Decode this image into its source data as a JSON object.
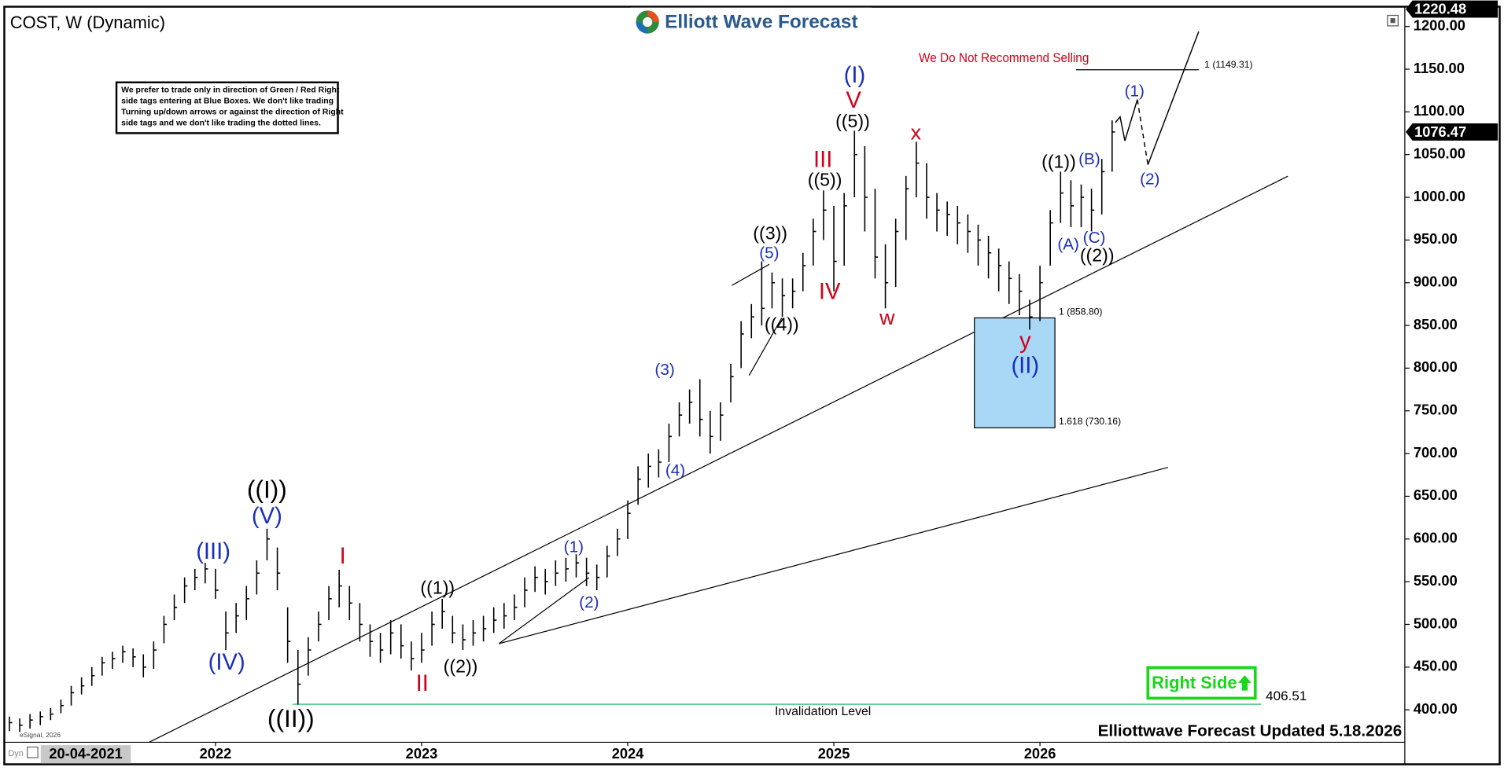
{
  "chart_data": {
    "type": "ohlc",
    "title": "COST, W (Dynamic)",
    "logo": "Elliott Wave Forecast",
    "warning": "We Do Not Recommend Selling",
    "note": [
      "We prefer to trade only in direction of Green / Red Right",
      "side tags entering at Blue Boxes. We don't like trading",
      "Turning up/down arrows or against the direction of Right",
      "side tags and we don't like trading the dotted lines."
    ],
    "footer": "Elliottwave Forecast Updated 5.18.2026",
    "cursor_date": "20-04-2021",
    "source": "eSignal, 2026",
    "corner": "Dyn",
    "right_side": "Right Side",
    "color": "#000000",
    "x": [
      2021,
      2021.05,
      2021.1,
      2021.15,
      2021.2,
      2021.25,
      2021.3,
      2021.35,
      2021.4,
      2021.45,
      2021.5,
      2021.55,
      2021.6,
      2021.65,
      2021.7,
      2021.75,
      2021.8,
      2021.85,
      2021.9,
      2021.95,
      2022,
      2022.05,
      2022.1,
      2022.15,
      2022.2,
      2022.25,
      2022.3,
      2022.35,
      2022.4,
      2022.45,
      2022.5,
      2022.55,
      2022.6,
      2022.65,
      2022.7,
      2022.75,
      2022.8,
      2022.85,
      2022.9,
      2022.95,
      2023,
      2023.05,
      2023.1,
      2023.15,
      2023.2,
      2023.25,
      2023.3,
      2023.35,
      2023.4,
      2023.45,
      2023.5,
      2023.55,
      2023.6,
      2023.65,
      2023.7,
      2023.75,
      2023.8,
      2023.85,
      2023.9,
      2023.95,
      2024,
      2024.05,
      2024.1,
      2024.15,
      2024.2,
      2024.25,
      2024.3,
      2024.35,
      2024.4,
      2024.45,
      2024.5,
      2024.55,
      2024.6,
      2024.65,
      2024.7,
      2024.75,
      2024.8,
      2024.85,
      2024.9,
      2024.95,
      2025,
      2025.05,
      2025.1,
      2025.15,
      2025.2,
      2025.25,
      2025.3,
      2025.35,
      2025.4,
      2025.45,
      2025.5,
      2025.55,
      2025.6,
      2025.65,
      2025.7,
      2025.75,
      2025.8,
      2025.85,
      2025.9,
      2025.95,
      2026,
      2026.05,
      2026.1,
      2026.15,
      2026.2,
      2026.25,
      2026.3,
      2026.35
    ],
    "high": [
      392,
      390,
      395,
      398,
      402,
      412,
      428,
      438,
      450,
      462,
      468,
      475,
      472,
      465,
      480,
      510,
      535,
      555,
      565,
      572,
      565,
      515,
      525,
      545,
      575,
      612,
      590,
      520,
      470,
      485,
      515,
      545,
      564,
      545,
      525,
      500,
      490,
      505,
      500,
      480,
      490,
      515,
      530,
      510,
      500,
      505,
      510,
      520,
      525,
      535,
      555,
      568,
      565,
      575,
      578,
      582,
      578,
      570,
      592,
      612,
      645,
      685,
      700,
      705,
      735,
      760,
      775,
      787,
      750,
      760,
      805,
      855,
      875,
      925,
      912,
      905,
      905,
      935,
      975,
      1008,
      990,
      1005,
      1078,
      1060,
      1010,
      945,
      975,
      1025,
      1065,
      1040,
      1005,
      995,
      990,
      980,
      968,
      955,
      940,
      925,
      910,
      880,
      920,
      985,
      1030,
      1020,
      1015,
      1010,
      1045,
      1090
    ],
    "low": [
      375,
      374,
      378,
      382,
      388,
      396,
      405,
      418,
      428,
      440,
      448,
      455,
      450,
      438,
      448,
      478,
      505,
      525,
      540,
      548,
      530,
      470,
      490,
      505,
      535,
      575,
      540,
      455,
      406,
      440,
      480,
      505,
      520,
      505,
      480,
      462,
      455,
      465,
      460,
      446,
      455,
      475,
      495,
      478,
      470,
      475,
      480,
      490,
      495,
      505,
      520,
      538,
      535,
      545,
      550,
      555,
      545,
      540,
      555,
      580,
      600,
      640,
      660,
      672,
      690,
      720,
      735,
      720,
      700,
      715,
      760,
      800,
      835,
      850,
      870,
      860,
      870,
      890,
      920,
      950,
      890,
      920,
      1000,
      960,
      905,
      870,
      895,
      950,
      1000,
      975,
      960,
      955,
      945,
      935,
      920,
      905,
      890,
      875,
      862,
      845,
      855,
      920,
      970,
      965,
      965,
      960,
      980,
      1030
    ],
    "close": [
      385,
      382,
      388,
      392,
      395,
      405,
      420,
      428,
      440,
      455,
      460,
      468,
      462,
      450,
      470,
      500,
      520,
      545,
      555,
      565,
      540,
      490,
      510,
      530,
      560,
      600,
      560,
      480,
      430,
      470,
      500,
      530,
      545,
      525,
      500,
      480,
      470,
      490,
      475,
      460,
      470,
      500,
      515,
      490,
      482,
      490,
      495,
      505,
      510,
      520,
      540,
      555,
      550,
      560,
      565,
      572,
      560,
      555,
      580,
      600,
      630,
      670,
      685,
      690,
      720,
      745,
      760,
      740,
      720,
      745,
      790,
      840,
      860,
      870,
      900,
      885,
      890,
      920,
      960,
      985,
      925,
      990,
      1050,
      1000,
      930,
      900,
      960,
      1010,
      1040,
      1000,
      985,
      980,
      970,
      960,
      950,
      935,
      920,
      905,
      890,
      860,
      900,
      970,
      1005,
      990,
      1000,
      985,
      1030,
      1076.47
    ],
    "xlim": [
      2020.98,
      2027.77
    ],
    "xticks": [
      2022,
      2023,
      2024,
      2025,
      2026
    ],
    "ylim": [
      362,
      1222
    ],
    "yticks": [
      {
        "value": 400,
        "label": "400.00"
      },
      {
        "value": 450,
        "label": "450.00"
      },
      {
        "value": 500,
        "label": "500.00"
      },
      {
        "value": 550,
        "label": "550.00"
      },
      {
        "value": 600,
        "label": "600.00"
      },
      {
        "value": 650,
        "label": "650.00"
      },
      {
        "value": 700,
        "label": "700.00"
      },
      {
        "value": 750,
        "label": "750.00"
      },
      {
        "value": 800,
        "label": "800.00"
      },
      {
        "value": 850,
        "label": "850.00"
      },
      {
        "value": 900,
        "label": "900.00"
      },
      {
        "value": 950,
        "label": "950.00"
      },
      {
        "value": 1000,
        "label": "1000.00"
      },
      {
        "value": 1050,
        "label": "1050.00"
      },
      {
        "value": 1100,
        "label": "1100.00"
      },
      {
        "value": 1150,
        "label": "1150.00"
      },
      {
        "value": 1200,
        "label": "1200.00"
      }
    ],
    "last_price": {
      "value": 1076.47,
      "label": "1076.47"
    },
    "top_price": {
      "value": 1220.48,
      "label": "1220.48"
    },
    "target": {
      "value": 1149.31,
      "label": "1 (1149.31)"
    },
    "blue_box": {
      "top": 858.8,
      "bottom": 730.16,
      "top_label": "1 (858.80)",
      "bottom_label": "1.618 (730.16)",
      "color": "#a9d8f7"
    },
    "invalidation": {
      "value": 406.51,
      "label": "406.51",
      "text": "Invalidation Level",
      "color": "#00b050"
    },
    "waves": [
      {
        "text": "((I))",
        "color": "#000000"
      },
      {
        "text": "(V)",
        "color": "#1a2fb8"
      },
      {
        "text": "(III)",
        "color": "#1a2fb8"
      },
      {
        "text": "(IV)",
        "color": "#1a2fb8"
      },
      {
        "text": "((II))",
        "color": "#000000"
      },
      {
        "text": "I",
        "color": "#d0021b"
      },
      {
        "text": "II",
        "color": "#d0021b"
      },
      {
        "text": "((1))",
        "color": "#000000"
      },
      {
        "text": "((2))",
        "color": "#000000"
      },
      {
        "text": "(1)",
        "color": "#1a2fb8"
      },
      {
        "text": "(2)",
        "color": "#1a2fb8"
      },
      {
        "text": "(3)",
        "color": "#1a2fb8"
      },
      {
        "text": "(4)",
        "color": "#1a2fb8"
      },
      {
        "text": "(5)",
        "color": "#1a2fb8"
      },
      {
        "text": "((3))",
        "color": "#000000"
      },
      {
        "text": "((4))",
        "color": "#000000"
      },
      {
        "text": "III",
        "color": "#d0021b"
      },
      {
        "text": "((5))",
        "color": "#000000"
      },
      {
        "text": "IV",
        "color": "#d0021b"
      },
      {
        "text": "((5))",
        "color": "#000000"
      },
      {
        "text": "V",
        "color": "#d0021b"
      },
      {
        "text": "(I)",
        "color": "#1a2fb8"
      },
      {
        "text": "w",
        "color": "#d0021b"
      },
      {
        "text": "x",
        "color": "#d0021b"
      },
      {
        "text": "y",
        "color": "#d0021b"
      },
      {
        "text": "(II)",
        "color": "#1a2fb8"
      },
      {
        "text": "((1))",
        "color": "#000000"
      },
      {
        "text": "(B)",
        "color": "#1a2fb8"
      },
      {
        "text": "(A)",
        "color": "#1a2fb8"
      },
      {
        "text": "(C)",
        "color": "#1a2fb8"
      },
      {
        "text": "((2))",
        "color": "#000000"
      },
      {
        "text": "(1)",
        "color": "#1a2fb8"
      },
      {
        "text": "(2)",
        "color": "#1a2fb8"
      }
    ]
  }
}
